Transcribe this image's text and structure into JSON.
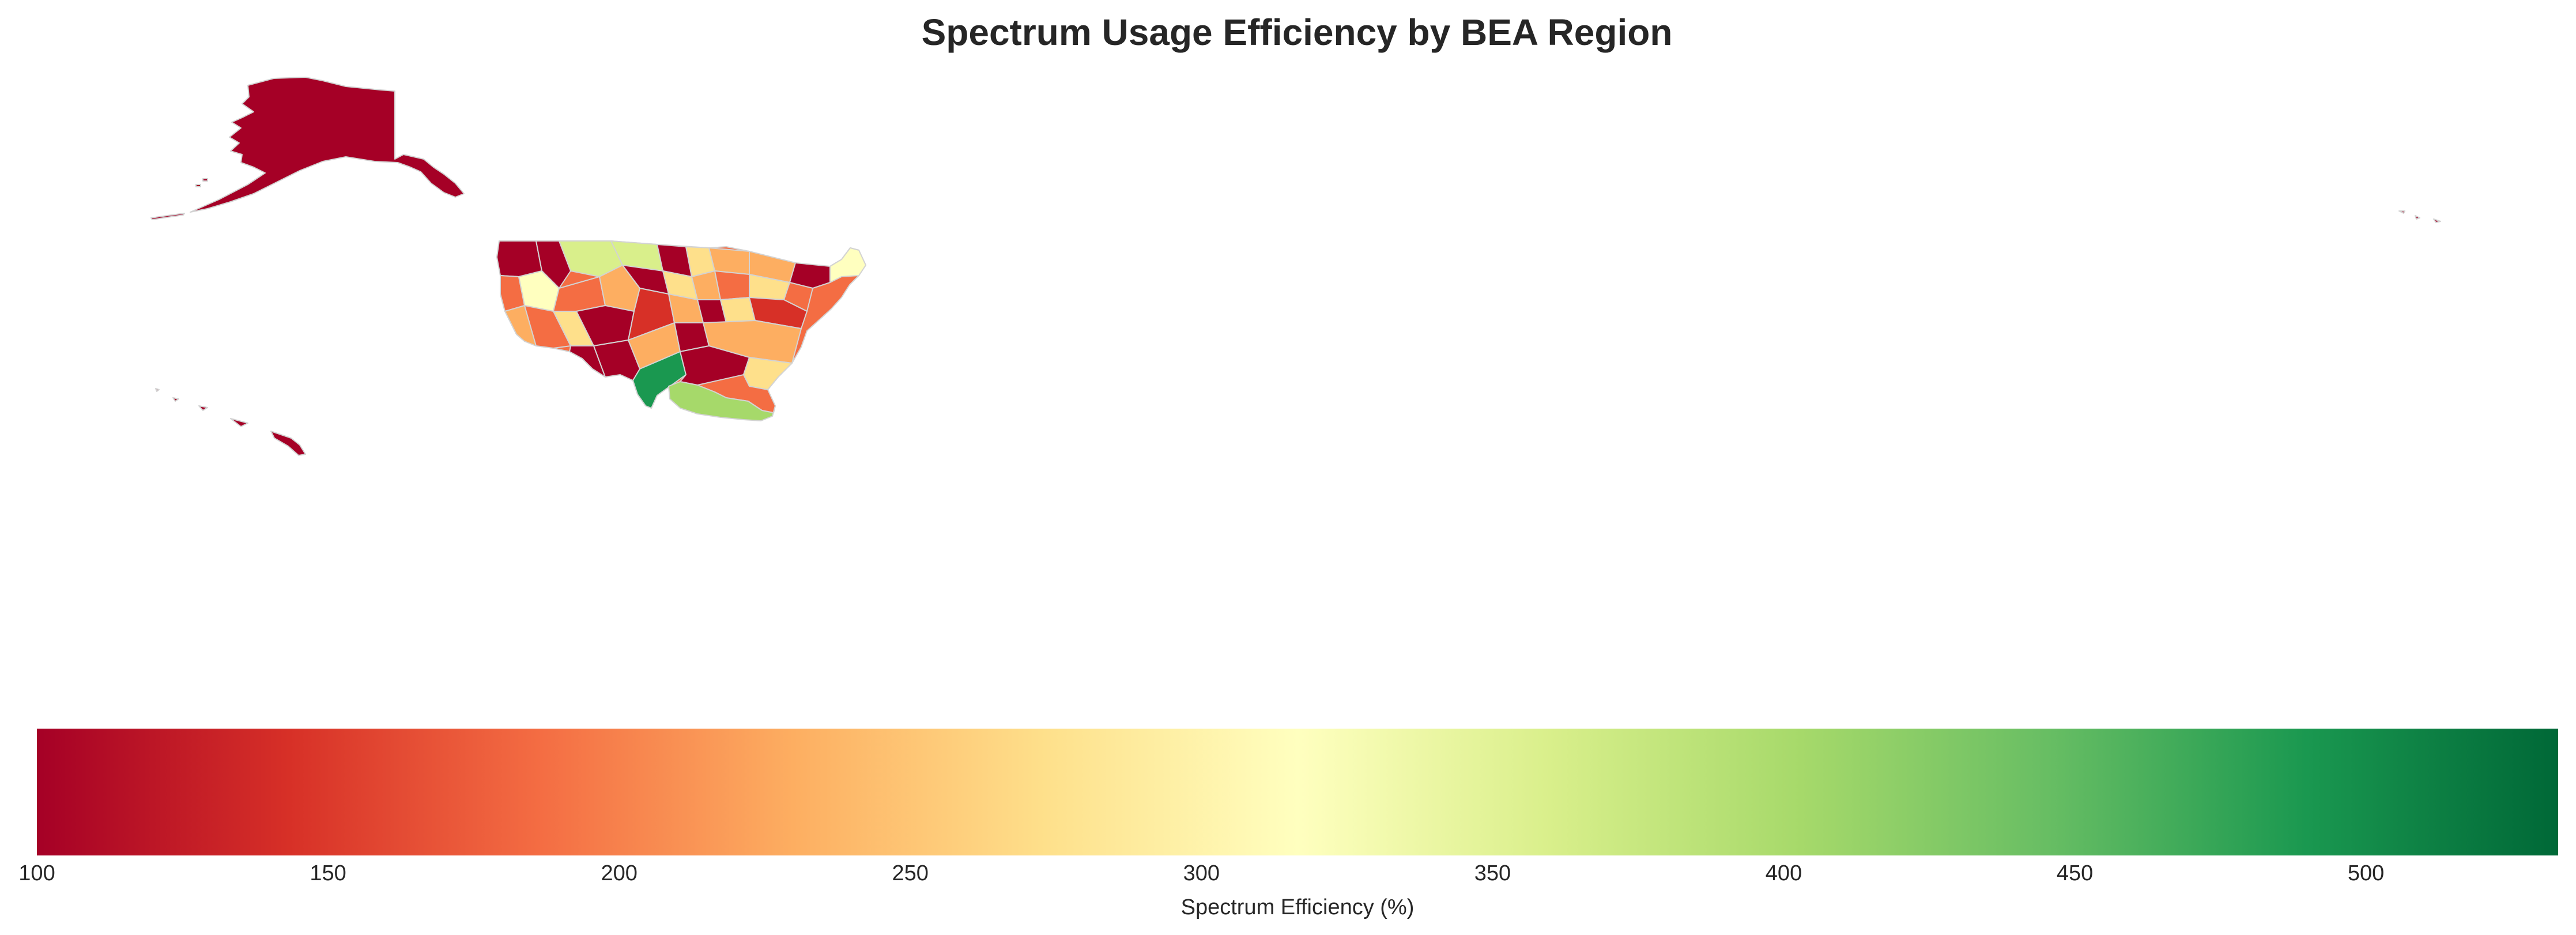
{
  "chart_data": {
    "type": "choropleth-map",
    "title": "Spectrum Usage Efficiency by BEA Region",
    "colormap": "RdYlGn",
    "colormap_stops": [
      "#a50026",
      "#d73027",
      "#f46d43",
      "#fdae61",
      "#fee08b",
      "#ffffbf",
      "#d9ef8b",
      "#a6d96a",
      "#66bd63",
      "#1a9850",
      "#006837"
    ],
    "region_border_color": "#d3d3d3",
    "colorbar": {
      "orientation": "horizontal",
      "placement": "bottom",
      "range": [
        100,
        533
      ],
      "ticks": [
        100,
        150,
        200,
        250,
        300,
        350,
        400,
        450,
        500
      ],
      "tick_labels": [
        "100",
        "150",
        "200",
        "250",
        "300",
        "350",
        "400",
        "450",
        "500"
      ],
      "label": "Spectrum Efficiency (%)"
    },
    "visible_regions": [
      {
        "area": "Alaska",
        "efficiency": 100
      },
      {
        "area": "Hawaii",
        "efficiency": 100
      },
      {
        "area": "Gulf of Mexico (offshore)",
        "efficiency": 410
      },
      {
        "area": "Northern Plains (Montana/North Dakota)",
        "efficiency": 370
      },
      {
        "area": "Southwest (Arizona)",
        "efficiency": 215
      },
      {
        "area": "Maine",
        "efficiency": 300
      }
    ]
  }
}
